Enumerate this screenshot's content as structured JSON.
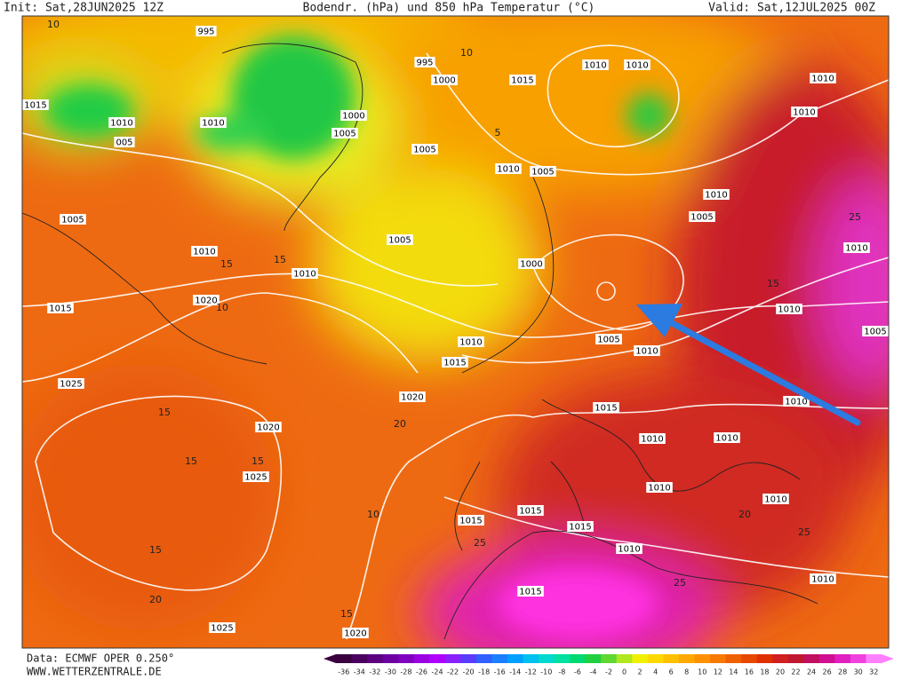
{
  "header": {
    "init": "Init: Sat,28JUN2025 12Z",
    "title": "Bodendr. (hPa) und 850 hPa Temperatur (°C)",
    "valid": "Valid: Sat,12JUL2025 00Z"
  },
  "footer": {
    "data": "Data: ECMWF OPER 0.250°",
    "url": "WWW.WETTERZENTRALE.DE"
  },
  "isobar_labels": [
    "995",
    "995",
    "1000",
    "1015",
    "1010",
    "1010",
    "1010",
    "1015",
    "1010",
    "1010",
    "1000",
    "1005",
    "005",
    "1005",
    "1010",
    "1005",
    "1010",
    "1010",
    "1005",
    "1005",
    "1005",
    "1010",
    "1010",
    "1000",
    "1005",
    "1020",
    "1015",
    "1010",
    "1010",
    "1005",
    "1010",
    "1005",
    "1010",
    "1015",
    "1025",
    "1020",
    "1015",
    "1010",
    "1020",
    "1010",
    "1010",
    "1025",
    "1010",
    "1010",
    "1015",
    "1015",
    "1015",
    "1010",
    "1010",
    "1015",
    "1025",
    "1020"
  ],
  "temperature_labels": [
    "10",
    "15",
    "15",
    "10",
    "15",
    "15",
    "15",
    "15",
    "20",
    "10",
    "15",
    "20",
    "25",
    "20",
    "25",
    "25",
    "5",
    "10",
    "15",
    "25"
  ],
  "colorbar": {
    "ticks": [
      -36,
      -34,
      -32,
      -30,
      -28,
      -26,
      -24,
      -22,
      -20,
      -18,
      -16,
      -14,
      -12,
      -10,
      -8,
      -6,
      -4,
      -2,
      0,
      2,
      4,
      6,
      8,
      10,
      12,
      14,
      16,
      18,
      20,
      22,
      24,
      26,
      28,
      30,
      32
    ],
    "colors": [
      "#3a0040",
      "#4b0060",
      "#5c0080",
      "#6d00a0",
      "#8000c0",
      "#9a00e0",
      "#b000ff",
      "#8a20ff",
      "#5a3cff",
      "#3060ff",
      "#1a80ff",
      "#00a0ff",
      "#00c0f0",
      "#00d8d0",
      "#00e0a0",
      "#00d870",
      "#20d040",
      "#60d830",
      "#b0e820",
      "#f0f000",
      "#ffd800",
      "#ffc000",
      "#ffa800",
      "#ff9000",
      "#f87800",
      "#f06000",
      "#e84800",
      "#e03000",
      "#d02020",
      "#c01830",
      "#c01060",
      "#d01090",
      "#e020c0",
      "#f040e0",
      "#ff80ff"
    ]
  }
}
